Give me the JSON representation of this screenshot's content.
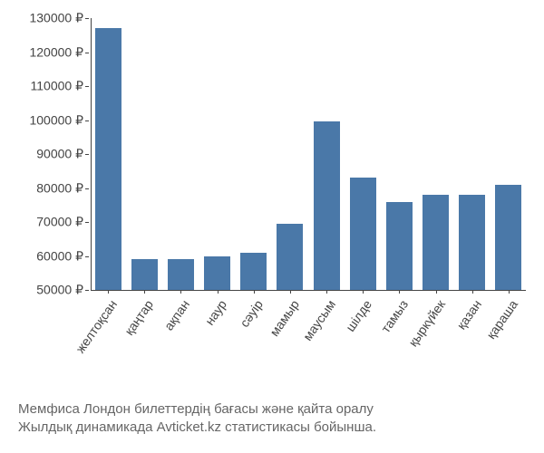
{
  "chart": {
    "type": "bar",
    "categories": [
      "желтоқсан",
      "қаңтар",
      "ақпан",
      "наур",
      "сәуір",
      "мамыр",
      "маусым",
      "шілде",
      "тамыз",
      "қыркүйек",
      "қазан",
      "қараша"
    ],
    "values": [
      127000,
      59000,
      59000,
      60000,
      61000,
      69500,
      99500,
      83000,
      76000,
      78000,
      78000,
      81000
    ],
    "bar_color": "#4a78a8",
    "bar_width_ratio": 0.85,
    "ylim": [
      50000,
      130000
    ],
    "ytick_step": 10000,
    "y_suffix": " ₽",
    "y_ticks": [
      50000,
      60000,
      70000,
      80000,
      90000,
      100000,
      110000,
      120000,
      130000
    ],
    "background_color": "#ffffff",
    "axis_color": "#444444",
    "label_fontsize": 14,
    "caption_color": "#666666",
    "caption_fontsize": 15,
    "x_label_rotation_deg": -55
  },
  "caption": {
    "line1": "Мемфиса Лондон билеттердің бағасы және қайта оралу",
    "line2": "Жылдық динамикада Avticket.kz статистикасы бойынша."
  }
}
